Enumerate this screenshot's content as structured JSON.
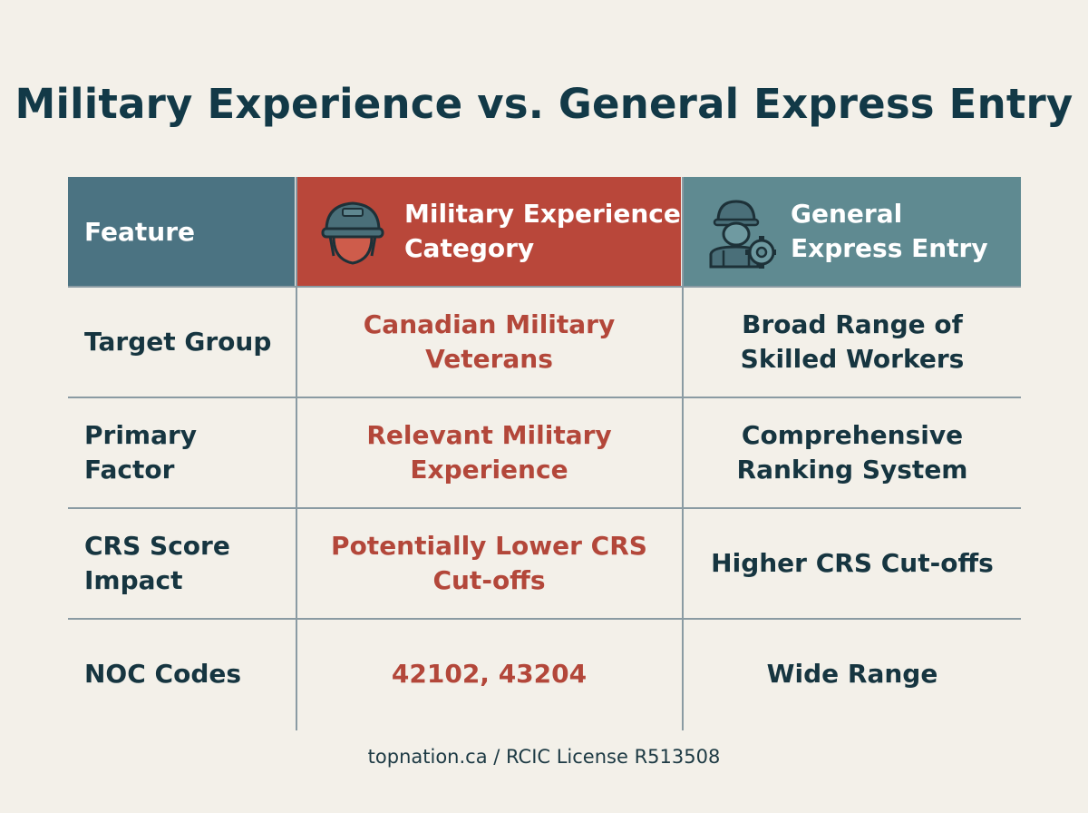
{
  "title": "Military Experience vs. General Express Entry",
  "colors": {
    "background": "#f3f0e9",
    "feature_header": "#4b7382",
    "military_header": "#b9473a",
    "general_header": "#5f8a91",
    "military_text": "#b3473a",
    "dark_text": "#163540"
  },
  "header": {
    "feature": "Feature",
    "military": "Military Experience Category",
    "general": "General Express Entry",
    "military_icon": "soldier-helmet-icon",
    "general_icon": "worker-gear-icon"
  },
  "rows": [
    {
      "feature": "Target Group",
      "military": "Canadian Military Veterans",
      "general": "Broad Range of Skilled Workers"
    },
    {
      "feature": "Primary Factor",
      "military": "Relevant Military Experience",
      "general": "Comprehensive Ranking System"
    },
    {
      "feature": "CRS Score Impact",
      "military": "Potentially Lower CRS Cut-offs",
      "general": "Higher CRS Cut-offs"
    },
    {
      "feature": "NOC Codes",
      "military": "42102, 43204",
      "general": "Wide Range"
    }
  ],
  "footer": "topnation.ca / RCIC License R513508"
}
